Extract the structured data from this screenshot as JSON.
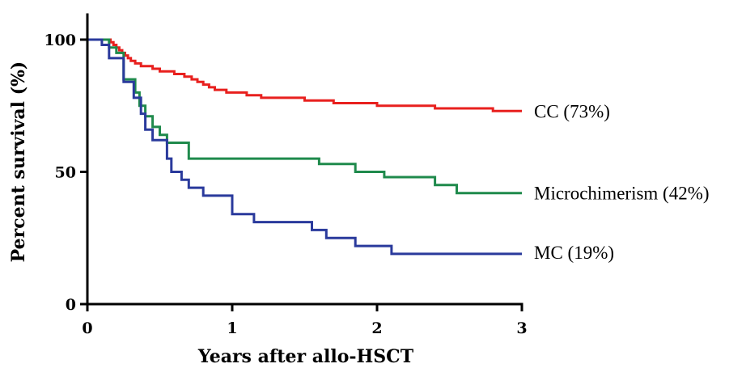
{
  "chart_data": {
    "type": "line",
    "step": true,
    "xlabel": "Years after allo-HSCT",
    "ylabel": "Percent survival (%)",
    "xlim": [
      0,
      3
    ],
    "ylim": [
      0,
      100
    ],
    "xticks": [
      0,
      1,
      2,
      3
    ],
    "yticks": [
      0,
      50,
      100
    ],
    "xtick_labels": [
      "0",
      "1",
      "2",
      "3"
    ],
    "ytick_labels": [
      "0",
      "50",
      "100"
    ],
    "grid": false,
    "legend": "inline-right",
    "series": [
      {
        "name": "CC (73%)",
        "color": "#e8201e",
        "x": [
          0,
          0.12,
          0.16,
          0.18,
          0.2,
          0.22,
          0.24,
          0.26,
          0.28,
          0.3,
          0.33,
          0.37,
          0.41,
          0.45,
          0.5,
          0.55,
          0.6,
          0.67,
          0.72,
          0.76,
          0.8,
          0.84,
          0.88,
          0.92,
          0.96,
          1.0,
          1.1,
          1.2,
          1.3,
          1.5,
          1.6,
          1.7,
          1.9,
          2.0,
          2.1,
          2.4,
          2.6,
          2.8,
          3.0
        ],
        "y": [
          100,
          100,
          99,
          98,
          97,
          96,
          95,
          94,
          93,
          92,
          91,
          90,
          90,
          89,
          88,
          88,
          87,
          86,
          85,
          84,
          83,
          82,
          81,
          81,
          80,
          80,
          79,
          78,
          78,
          77,
          77,
          76,
          76,
          75,
          75,
          74,
          74,
          73,
          73
        ]
      },
      {
        "name": "Microchimerism (42%)",
        "color": "#1f8a4c",
        "x": [
          0,
          0.15,
          0.2,
          0.25,
          0.33,
          0.36,
          0.4,
          0.45,
          0.5,
          0.55,
          0.6,
          0.7,
          1.6,
          1.85,
          2.05,
          2.4,
          2.55,
          3.0
        ],
        "y": [
          100,
          97,
          95,
          85,
          80,
          75,
          71,
          67,
          64,
          61,
          61,
          55,
          53,
          50,
          48,
          45,
          42,
          42
        ]
      },
      {
        "name": "MC (19%)",
        "color": "#2a3a9c",
        "x": [
          0,
          0.1,
          0.15,
          0.25,
          0.32,
          0.37,
          0.4,
          0.45,
          0.55,
          0.58,
          0.6,
          0.65,
          0.7,
          0.8,
          0.85,
          1.0,
          1.15,
          1.55,
          1.65,
          1.85,
          2.1,
          3.0
        ],
        "y": [
          100,
          98,
          93,
          84,
          78,
          72,
          66,
          62,
          55,
          50,
          50,
          47,
          44,
          41,
          41,
          34,
          31,
          28,
          25,
          22,
          19,
          19
        ]
      }
    ]
  }
}
